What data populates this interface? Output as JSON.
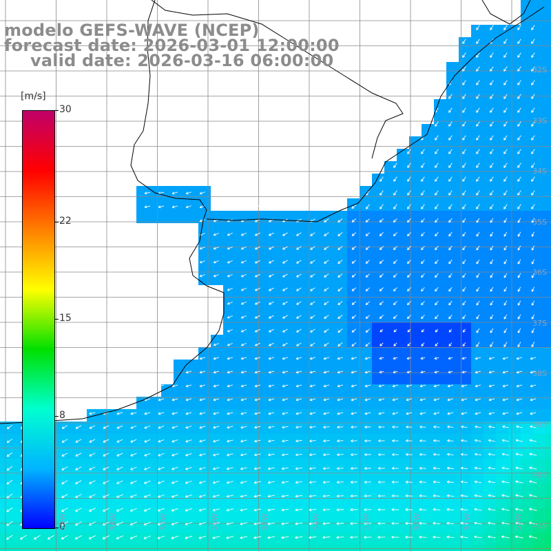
{
  "title": {
    "line1": "modelo GEFS-WAVE (NCEP)",
    "line2": "forecast date: 2026-03-01 12:00:00",
    "line3": "valid date: 2026-03-16 06:00:00"
  },
  "colorbar": {
    "unit": "[m/s]",
    "ticks": [
      "30",
      "22",
      "15",
      "8",
      "0"
    ],
    "tick_values": [
      30,
      22,
      15,
      8,
      0
    ],
    "range": [
      0,
      30
    ],
    "colors": [
      "#0000ff",
      "#00b4ff",
      "#00ffd0",
      "#00e000",
      "#ffff00",
      "#ff8000",
      "#ff0000",
      "#c0006a"
    ]
  },
  "map": {
    "land_color": "#ffffff",
    "coastline_color": "#000000",
    "grid_color": "#888888",
    "ocean_base_color": "#1e96ff",
    "arrow_color": "#ffffff",
    "lat_labels": [
      "32S",
      "33S",
      "34S",
      "35S",
      "36S",
      "37S",
      "38S",
      "39S",
      "40S",
      "41S"
    ],
    "lon_labels": [
      "59W",
      "58W",
      "57W",
      "56W",
      "55W",
      "54W",
      "53W",
      "52W",
      "51W",
      "50W"
    ]
  }
}
